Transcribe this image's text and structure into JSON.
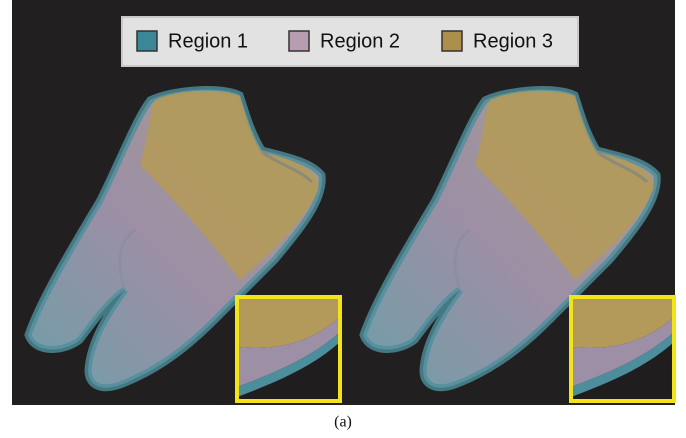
{
  "legend": {
    "items": [
      {
        "label": "Region 1",
        "color": "#3b8797"
      },
      {
        "label": "Region 2",
        "color": "#b79cb2"
      },
      {
        "label": "Region 3",
        "color": "#ad8f4c"
      }
    ]
  },
  "caption": "(a)"
}
